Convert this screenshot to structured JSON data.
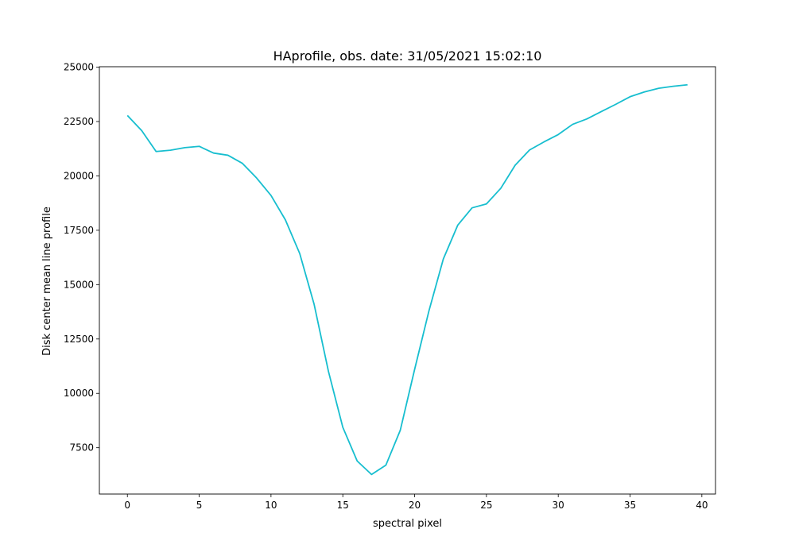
{
  "chart_data": {
    "type": "line",
    "title": "HAprofile, obs. date: 31/05/2021 15:02:10",
    "xlabel": "spectral pixel",
    "ylabel": "Disk center mean line profile",
    "xlim": [
      -1.95,
      40.95
    ],
    "ylim": [
      5370,
      25020
    ],
    "xticks": [
      0,
      5,
      10,
      15,
      20,
      25,
      30,
      35,
      40
    ],
    "yticks": [
      7500,
      10000,
      12500,
      15000,
      17500,
      20000,
      22500,
      25000
    ],
    "grid": false,
    "line_color": "#17becf",
    "series": [
      {
        "x": [
          0,
          1,
          2,
          3,
          4,
          5,
          6,
          7,
          8,
          9,
          10,
          11,
          12,
          13,
          14,
          15,
          16,
          17,
          18,
          19,
          20,
          21,
          22,
          23,
          24,
          25,
          26,
          27,
          28,
          29,
          30,
          31,
          32,
          33,
          34,
          35,
          36,
          37,
          38,
          39
        ],
        "y": [
          22780,
          22080,
          21120,
          21180,
          21300,
          21360,
          21050,
          20950,
          20580,
          19900,
          19100,
          17980,
          16430,
          14100,
          11010,
          8440,
          6890,
          6270,
          6700,
          8300,
          11100,
          13800,
          16180,
          17730,
          18530,
          18710,
          19430,
          20490,
          21190,
          21560,
          21900,
          22370,
          22620,
          22960,
          23290,
          23640,
          23860,
          24030,
          24120,
          24190
        ]
      }
    ]
  }
}
